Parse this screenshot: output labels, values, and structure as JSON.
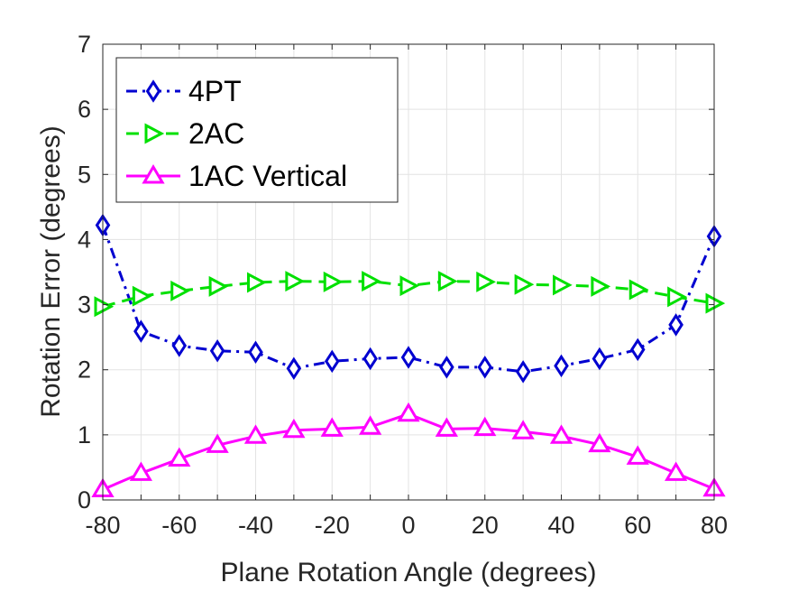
{
  "chart_data": {
    "type": "line",
    "xlabel": "Plane Rotation Angle (degrees)",
    "ylabel": "Rotation Error (degrees)",
    "xlim": [
      -80,
      80
    ],
    "ylim": [
      0,
      7
    ],
    "xticks": [
      -80,
      -60,
      -40,
      -20,
      0,
      20,
      40,
      60,
      80
    ],
    "yticks": [
      0,
      1,
      2,
      3,
      4,
      5,
      6,
      7
    ],
    "grid": true,
    "legend_position": "top-left",
    "x": [
      -80,
      -70,
      -60,
      -50,
      -40,
      -30,
      -20,
      -10,
      0,
      10,
      20,
      30,
      40,
      50,
      60,
      70,
      80
    ],
    "series": [
      {
        "name": "4PT",
        "color": "#0000d0",
        "marker": "diamond",
        "line_style": "dash-dot",
        "values": [
          4.22,
          2.59,
          2.37,
          2.29,
          2.27,
          2.02,
          2.13,
          2.17,
          2.19,
          2.04,
          2.04,
          1.97,
          2.06,
          2.17,
          2.31,
          2.69,
          4.05
        ]
      },
      {
        "name": "2AC",
        "color": "#00e000",
        "marker": "triangle-right",
        "line_style": "dashed",
        "values": [
          2.97,
          3.13,
          3.21,
          3.28,
          3.34,
          3.36,
          3.35,
          3.36,
          3.29,
          3.36,
          3.35,
          3.31,
          3.3,
          3.28,
          3.23,
          3.12,
          3.02
        ]
      },
      {
        "name": "1AC Vertical",
        "color": "#ff00ff",
        "marker": "triangle-up",
        "line_style": "solid",
        "values": [
          0.16,
          0.41,
          0.63,
          0.84,
          0.98,
          1.07,
          1.09,
          1.12,
          1.32,
          1.09,
          1.1,
          1.05,
          0.98,
          0.85,
          0.66,
          0.41,
          0.17
        ]
      }
    ]
  }
}
